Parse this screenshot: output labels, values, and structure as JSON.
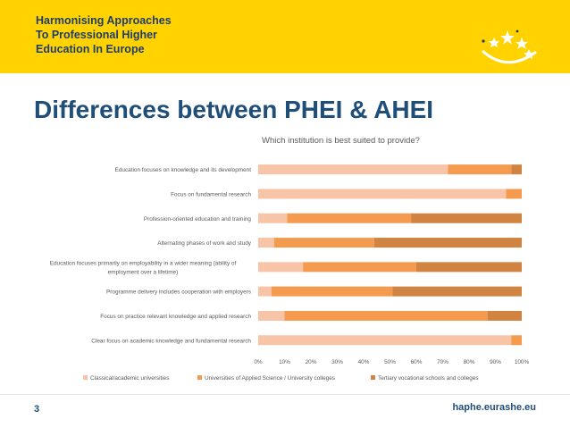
{
  "header": {
    "logo_lines": [
      "Harmonising Approaches",
      "To Professional Higher",
      "Education In Europe"
    ],
    "logo_icon": "eu-stars-smile-icon",
    "bar_color": "#ffd200"
  },
  "slide": {
    "title": "Differences between PHEI & AHEI",
    "number": "3",
    "website": "haphe.eurashe.eu"
  },
  "colors": {
    "classical": "#f8c4a8",
    "uas": "#f59b4f",
    "tertiary": "#d18342",
    "text": "#595959",
    "title": "#1f4e79"
  },
  "chart_data": {
    "type": "bar",
    "orientation": "horizontal",
    "stacked": true,
    "percent_stacked": true,
    "title": "Which institution is best suited to provide?",
    "categories": [
      "Education focuses on knowledge and its development",
      "Focus on fundamental research",
      "Profession-oriented education and training",
      "Alternating phases of work and study",
      "Education focuses primarily on employability in a wider meaning (ability of employment over a lifetime)",
      "Programme delivery includes cooperation with employers",
      "Focus on  practice relevant knowledge and applied research",
      "Clear focus on academic knowledge and fundamental research"
    ],
    "category_lines": [
      [
        "Education focuses on knowledge and its development"
      ],
      [
        "Focus on fundamental research"
      ],
      [
        "Profession-oriented education and training"
      ],
      [
        "Alternating phases of work and study"
      ],
      [
        "Education focuses primarily on employability in a wider meaning (ability of",
        "employment over a lifetime)"
      ],
      [
        "Programme delivery includes cooperation with employers"
      ],
      [
        "Focus on  practice relevant knowledge and applied research"
      ],
      [
        "Clear focus on academic knowledge and fundamental research"
      ]
    ],
    "series": [
      {
        "name": "Classical/academic universities",
        "values": [
          72,
          94,
          11,
          6,
          17,
          5,
          10,
          96
        ]
      },
      {
        "name": "Universities of Applied Science / University colleges",
        "values": [
          24,
          6,
          47,
          38,
          43,
          46,
          77,
          4
        ]
      },
      {
        "name": "Tertiary vocational schools and colleges",
        "values": [
          4,
          0,
          42,
          56,
          40,
          49,
          13,
          0
        ]
      }
    ],
    "xlim": [
      0,
      100
    ],
    "xticks": [
      "0%",
      "10%",
      "20%",
      "30%",
      "40%",
      "50%",
      "60%",
      "70%",
      "80%",
      "90%",
      "100%"
    ],
    "xlabel": "",
    "ylabel": "",
    "legend": "bottom",
    "grid": false
  }
}
